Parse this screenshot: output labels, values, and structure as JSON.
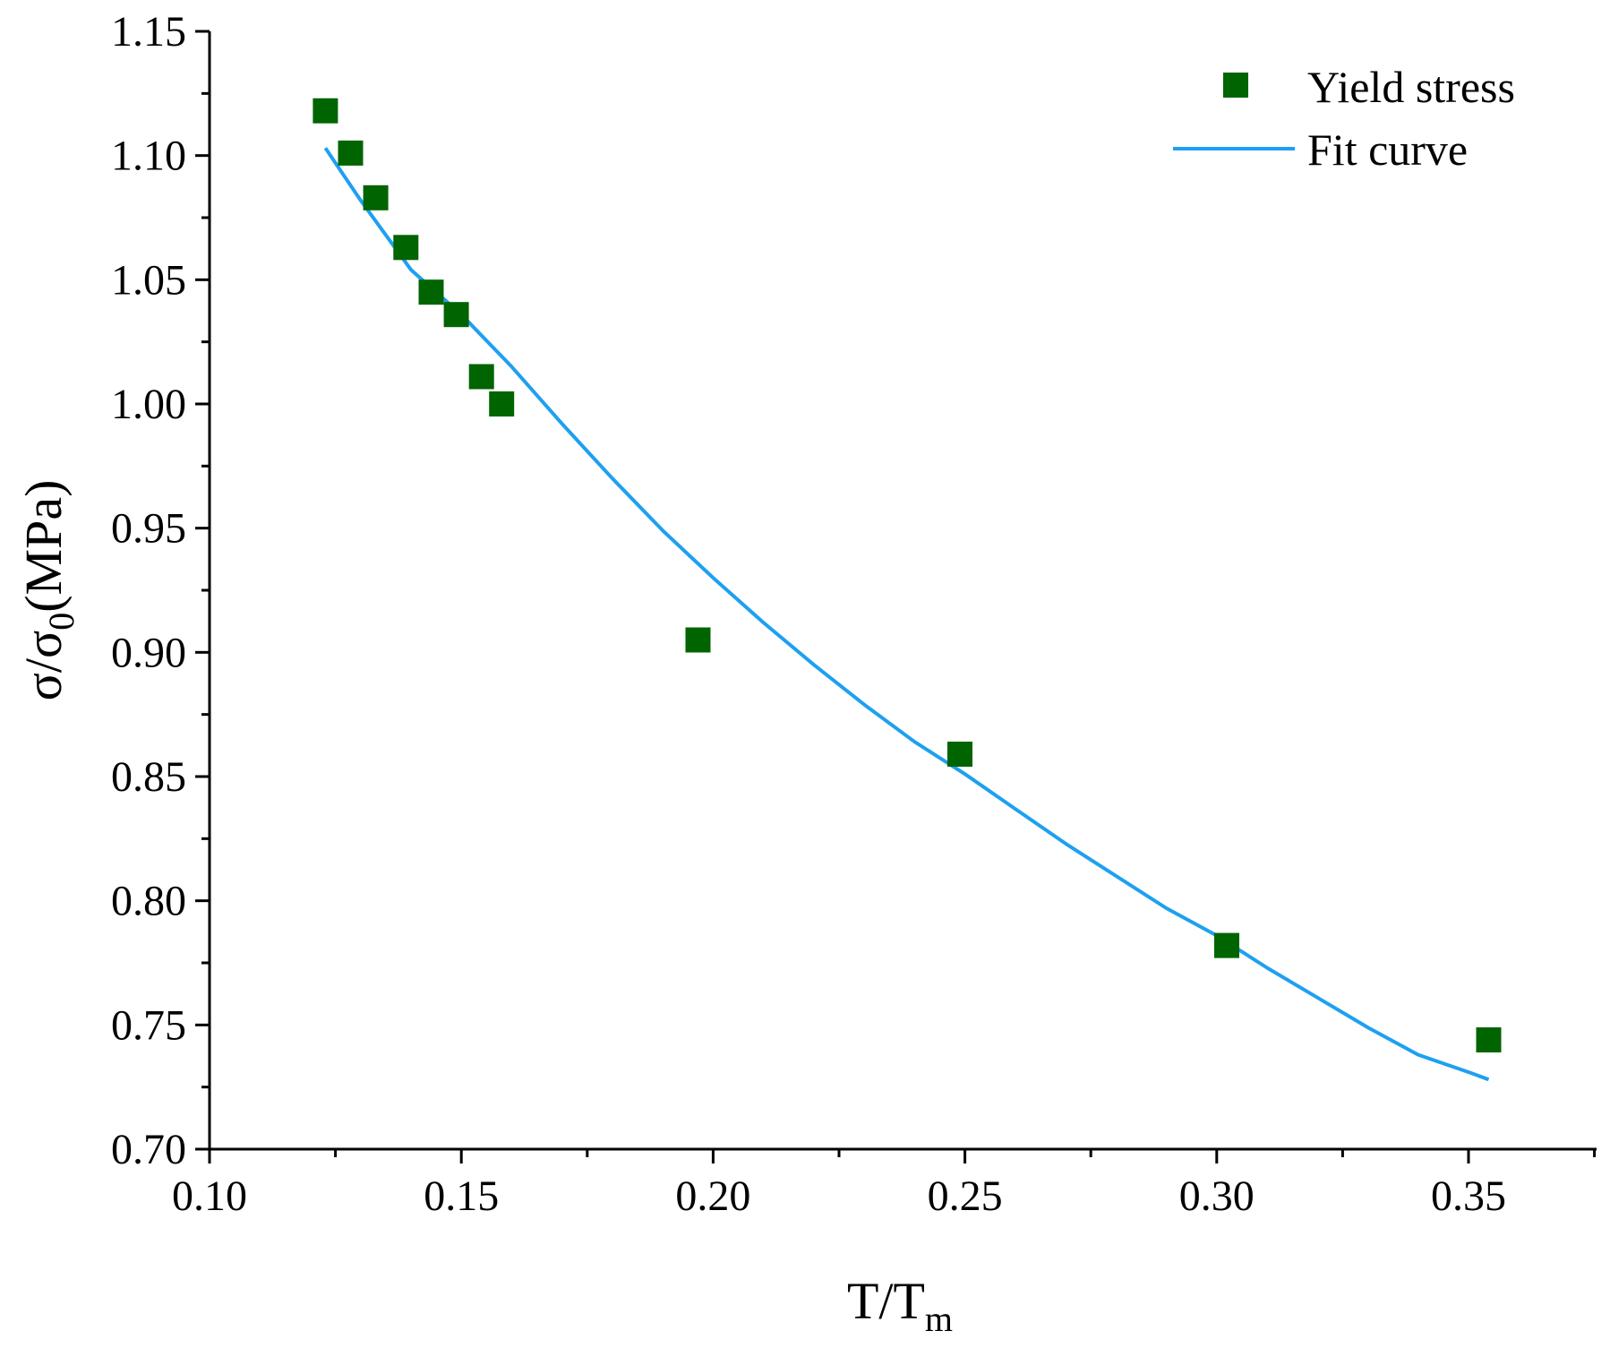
{
  "chart_data": {
    "type": "scatter",
    "title": "",
    "xlabel": "T/Tm",
    "xlabel_main": "T/T",
    "xlabel_sub": "m",
    "ylabel": "σ/σ0(MPa)",
    "ylabel_main": "σ/σ",
    "ylabel_sub": "0",
    "ylabel_unit": "(MPa)",
    "xlim": [
      0.1,
      0.375
    ],
    "ylim": [
      0.7,
      1.15
    ],
    "x_ticks": [
      0.1,
      0.15,
      0.2,
      0.25,
      0.3,
      0.35
    ],
    "x_tick_labels": [
      "0.10",
      "0.15",
      "0.20",
      "0.25",
      "0.30",
      "0.35"
    ],
    "y_ticks": [
      0.7,
      0.75,
      0.8,
      0.85,
      0.9,
      0.95,
      1.0,
      1.05,
      1.1,
      1.15
    ],
    "y_tick_labels": [
      "0.70",
      "0.75",
      "0.80",
      "0.85",
      "0.90",
      "0.95",
      "1.00",
      "1.05",
      "1.10",
      "1.15"
    ],
    "grid": false,
    "legend_position": "top-right",
    "series": [
      {
        "name": "Yield stress",
        "kind": "scatter",
        "marker": "square",
        "color": "#006400",
        "x": [
          0.123,
          0.128,
          0.133,
          0.139,
          0.144,
          0.149,
          0.154,
          0.158,
          0.197,
          0.249,
          0.302,
          0.354
        ],
        "y": [
          1.118,
          1.101,
          1.083,
          1.063,
          1.045,
          1.036,
          1.011,
          1.0,
          0.905,
          0.859,
          0.782,
          0.744
        ]
      },
      {
        "name": "Fit curve",
        "kind": "line",
        "color": "#1EA0F0",
        "x": [
          0.123,
          0.13,
          0.14,
          0.15,
          0.16,
          0.17,
          0.18,
          0.19,
          0.2,
          0.21,
          0.22,
          0.23,
          0.24,
          0.25,
          0.26,
          0.27,
          0.28,
          0.29,
          0.3,
          0.31,
          0.32,
          0.33,
          0.34,
          0.35,
          0.354
        ],
        "y": [
          1.103,
          1.082,
          1.054,
          1.036,
          1.015,
          0.992,
          0.97,
          0.949,
          0.93,
          0.912,
          0.895,
          0.879,
          0.864,
          0.851,
          0.837,
          0.823,
          0.81,
          0.797,
          0.786,
          0.773,
          0.761,
          0.749,
          0.738,
          0.731,
          0.728
        ]
      }
    ]
  }
}
